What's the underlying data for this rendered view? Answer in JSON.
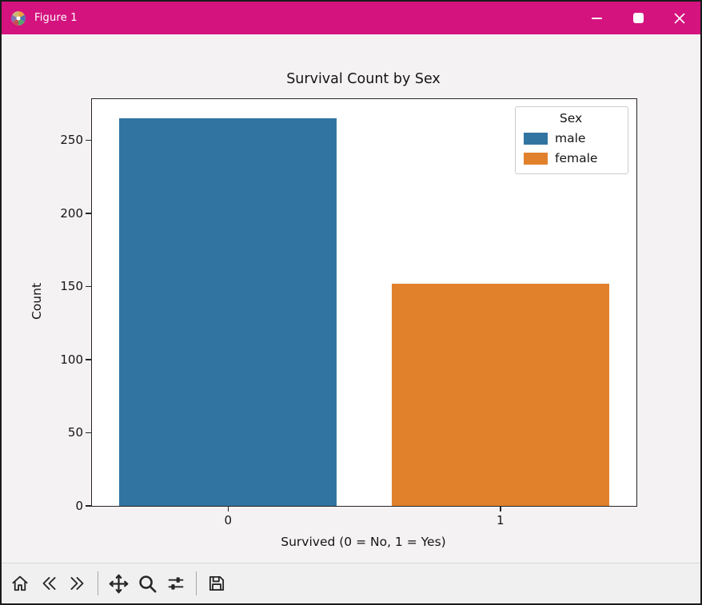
{
  "window": {
    "title": "Figure 1",
    "titlebar_color": "#d4137f"
  },
  "chart_data": {
    "type": "bar",
    "title": "Survival Count by Sex",
    "xlabel": "Survived (0 = No, 1 = Yes)",
    "ylabel": "Count",
    "categories": [
      "0",
      "1"
    ],
    "bars": [
      {
        "category": "0",
        "label": "male",
        "value": 265,
        "color": "#3274a1"
      },
      {
        "category": "1",
        "label": "female",
        "value": 152,
        "color": "#e1812c"
      }
    ],
    "series": [
      {
        "name": "male",
        "values": [
          265,
          0
        ]
      },
      {
        "name": "female",
        "values": [
          0,
          152
        ]
      }
    ],
    "legend": {
      "title": "Sex",
      "position": "upper right",
      "items": [
        {
          "label": "male",
          "color": "#3274a1"
        },
        {
          "label": "female",
          "color": "#e1812c"
        }
      ]
    },
    "ylim": [
      0,
      278
    ],
    "yticks": [
      0,
      50,
      100,
      150,
      200,
      250
    ],
    "grid": false,
    "bar_width_fraction": 0.8
  },
  "toolbar": {
    "icons": [
      "home-icon",
      "back-icon",
      "forward-icon",
      "pan-icon",
      "zoom-icon",
      "subplots-icon",
      "save-icon"
    ]
  }
}
